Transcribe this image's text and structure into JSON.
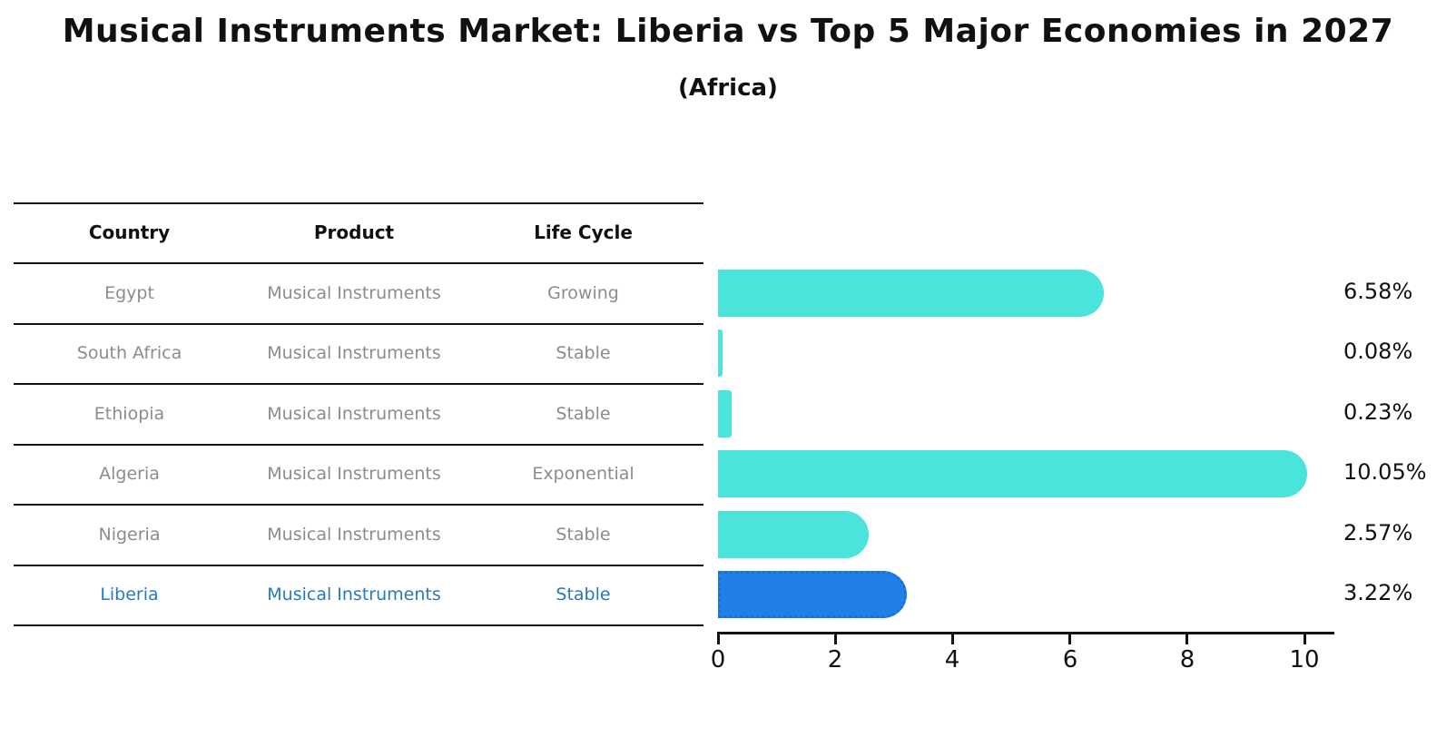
{
  "title": "Musical Instruments Market: Liberia vs Top 5 Major Economies in 2027",
  "subtitle": "(Africa)",
  "table": {
    "headers": [
      "Country",
      "Product",
      "Life Cycle"
    ],
    "rows": [
      {
        "country": "Egypt",
        "product": "Musical Instruments",
        "life_cycle": "Growing",
        "highlighted": false
      },
      {
        "country": "South Africa",
        "product": "Musical Instruments",
        "life_cycle": "Stable",
        "highlighted": false
      },
      {
        "country": "Ethiopia",
        "product": "Musical Instruments",
        "life_cycle": "Stable",
        "highlighted": false
      },
      {
        "country": "Algeria",
        "product": "Musical Instruments",
        "life_cycle": "Exponential",
        "highlighted": false
      },
      {
        "country": "Nigeria",
        "product": "Musical Instruments",
        "life_cycle": "Stable",
        "highlighted": false
      },
      {
        "country": "Liberia",
        "product": "Musical Instruments",
        "life_cycle": "Stable",
        "highlighted": true
      }
    ]
  },
  "chart_data": {
    "type": "bar",
    "orientation": "horizontal",
    "categories": [
      "Egypt",
      "South Africa",
      "Ethiopia",
      "Algeria",
      "Nigeria",
      "Liberia"
    ],
    "values": [
      6.58,
      0.08,
      0.23,
      10.05,
      2.57,
      3.22
    ],
    "value_labels": [
      "6.58%",
      "0.08%",
      "0.23%",
      "10.05%",
      "2.57%",
      "3.22%"
    ],
    "highlight_index": 5,
    "xticks": [
      0,
      2,
      4,
      6,
      8,
      10
    ],
    "xtick_labels": [
      "0",
      "2",
      "4",
      "6",
      "8",
      "10"
    ],
    "xlim": [
      0,
      10.5
    ],
    "grid": false,
    "legend": "none",
    "title": "Musical Instruments Market: Liberia vs Top 5 Major Economies in 2027 (Africa)",
    "xlabel": "",
    "ylabel": ""
  },
  "colors": {
    "bar": "#4be4dd",
    "highlight_bar": "#2180e8",
    "highlight_border": "#1a6fd6",
    "highlight_text": "#2878be",
    "text": "#111111",
    "muted_text": "#8c8c8c"
  }
}
